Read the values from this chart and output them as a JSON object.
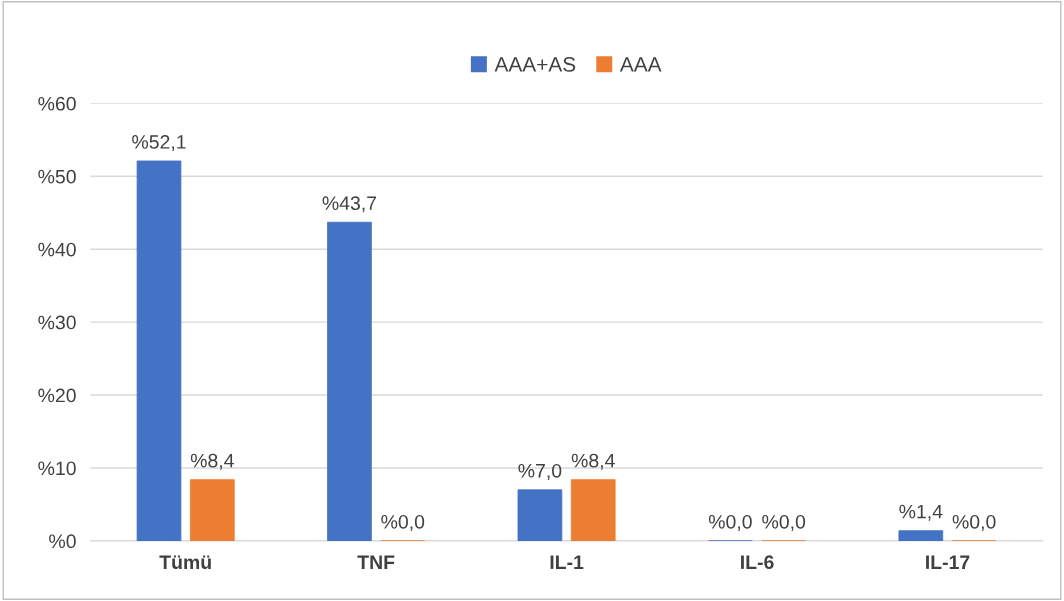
{
  "chart_data": {
    "type": "bar",
    "categories": [
      "Tümü",
      "TNF",
      "IL-1",
      "IL-6",
      "IL-17"
    ],
    "series": [
      {
        "name": "AAA+AS",
        "color": "#4472c4",
        "values": [
          52.1,
          43.7,
          7.0,
          0.0,
          1.4
        ],
        "value_labels": [
          "%52,1",
          "%43,7",
          "%7,0",
          "%0,0",
          "%1,4"
        ]
      },
      {
        "name": "AAA",
        "color": "#ed7d31",
        "values": [
          8.4,
          0.0,
          8.4,
          0.0,
          0.0
        ],
        "value_labels": [
          "%8,4",
          "%0,0",
          "%8,4",
          "%0,0",
          "%0,0"
        ]
      }
    ],
    "ylim": [
      0,
      60
    ],
    "yticks": [
      {
        "value": 0,
        "label": "%0"
      },
      {
        "value": 10,
        "label": "%10"
      },
      {
        "value": 20,
        "label": "%20"
      },
      {
        "value": 30,
        "label": "%30"
      },
      {
        "value": 40,
        "label": "%40"
      },
      {
        "value": 50,
        "label": "%50"
      },
      {
        "value": 60,
        "label": "%60"
      }
    ],
    "grid": "y",
    "legend": "top"
  }
}
